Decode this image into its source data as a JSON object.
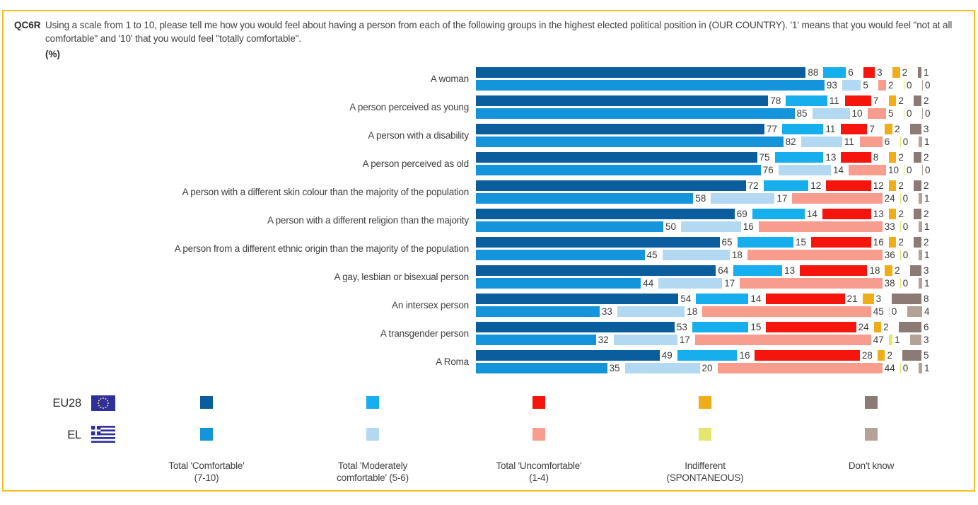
{
  "panel": {
    "question_id": "QC6R",
    "question_text": "Using a scale from 1 to 10, please tell me how you would feel about having a person from each of the following groups in the highest elected political position in (OUR COUNTRY). '1' means that you would feel \"not at all comfortable\" and '10' that you would feel \"totally comfortable\".",
    "unit_label": "(%)"
  },
  "chart_data": {
    "type": "bar",
    "orientation": "horizontal-stacked",
    "value_unit": "%",
    "series_labels": [
      "Total 'Comfortable' (7-10)",
      "Total 'Moderately comfortable' (5-6)",
      "Total 'Uncomfortable' (1-4)",
      "Indifferent (SPONTANEOUS)",
      "Don't know"
    ],
    "series_keys": [
      "comfortable",
      "moderately-comfortable",
      "uncomfortable",
      "indifferent",
      "dont-know"
    ],
    "groups": [
      "EU28",
      "EL"
    ],
    "colors": {
      "EU28": [
        "#0B5E9D",
        "#16AEEC",
        "#F6150C",
        "#EFAD19",
        "#8C7B74"
      ],
      "EL": [
        "#1495DB",
        "#B2D8F2",
        "#F89D8D",
        "#E4E66E",
        "#B3A295"
      ]
    },
    "categories": [
      {
        "label": "A woman",
        "values": {
          "EU28": [
            88,
            6,
            3,
            2,
            1
          ],
          "EL": [
            93,
            5,
            2,
            0,
            0
          ]
        }
      },
      {
        "label": "A person perceived as young",
        "values": {
          "EU28": [
            78,
            11,
            7,
            2,
            2
          ],
          "EL": [
            85,
            10,
            5,
            0,
            0
          ]
        }
      },
      {
        "label": "A person with a disability",
        "values": {
          "EU28": [
            77,
            11,
            7,
            2,
            3
          ],
          "EL": [
            82,
            11,
            6,
            0,
            1
          ]
        }
      },
      {
        "label": "A person perceived as old",
        "values": {
          "EU28": [
            75,
            13,
            8,
            2,
            2
          ],
          "EL": [
            76,
            14,
            10,
            0,
            0
          ]
        }
      },
      {
        "label": "A person with a different skin colour than the majority of the population",
        "values": {
          "EU28": [
            72,
            12,
            12,
            2,
            2
          ],
          "EL": [
            58,
            17,
            24,
            0,
            1
          ]
        }
      },
      {
        "label": "A person with a different religion than the majority",
        "values": {
          "EU28": [
            69,
            14,
            13,
            2,
            2
          ],
          "EL": [
            50,
            16,
            33,
            0,
            1
          ]
        }
      },
      {
        "label": "A person from a different ethnic origin than the majority of the population",
        "values": {
          "EU28": [
            65,
            15,
            16,
            2,
            2
          ],
          "EL": [
            45,
            18,
            36,
            0,
            1
          ]
        }
      },
      {
        "label": "A gay, lesbian or bisexual person",
        "values": {
          "EU28": [
            64,
            13,
            18,
            2,
            3
          ],
          "EL": [
            44,
            17,
            38,
            0,
            1
          ]
        }
      },
      {
        "label": "An intersex person",
        "values": {
          "EU28": [
            54,
            14,
            21,
            3,
            8
          ],
          "EL": [
            33,
            18,
            45,
            0,
            4
          ]
        }
      },
      {
        "label": "A transgender person",
        "values": {
          "EU28": [
            53,
            15,
            24,
            2,
            6
          ],
          "EL": [
            32,
            17,
            47,
            1,
            3
          ]
        }
      },
      {
        "label": "A Roma",
        "values": {
          "EU28": [
            49,
            16,
            28,
            2,
            5
          ],
          "EL": [
            35,
            20,
            44,
            0,
            1
          ]
        }
      }
    ]
  },
  "legend": {
    "rows": [
      {
        "code": "EU28",
        "flag": "eu-flag"
      },
      {
        "code": "EL",
        "flag": "greece-flag"
      }
    ],
    "column_labels": [
      [
        "Total 'Comfortable'",
        "(7-10)"
      ],
      [
        "Total 'Moderately",
        "comfortable' (5-6)"
      ],
      [
        "Total 'Uncomfortable'",
        "(1-4)"
      ],
      [
        "Indifferent",
        "(SPONTANEOUS)"
      ],
      [
        "Don't know",
        ""
      ]
    ]
  }
}
